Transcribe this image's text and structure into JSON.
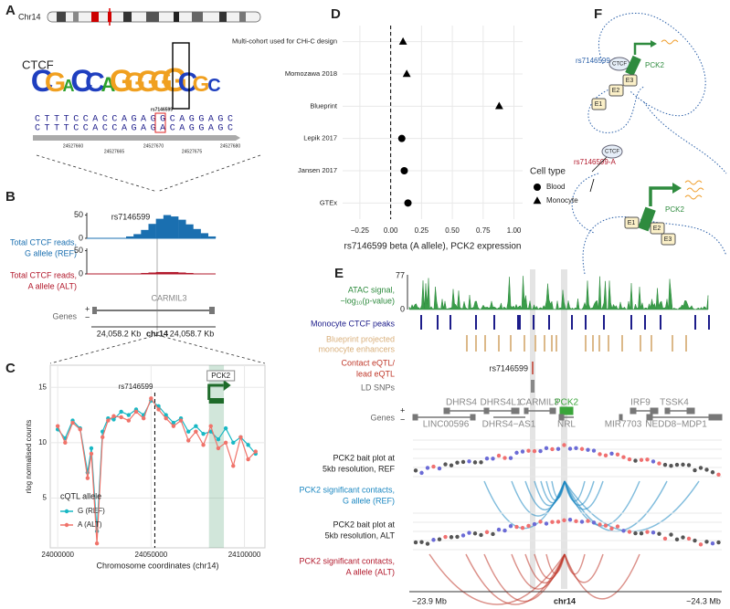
{
  "panel_labels": [
    "A",
    "B",
    "C",
    "D",
    "E",
    "F"
  ],
  "panel_a": {
    "chromosome": "Chr14",
    "motif": "CTCF",
    "logo": [
      "C",
      "G",
      "A",
      "C",
      "C",
      "A",
      "G",
      "G",
      "G",
      "G",
      "G",
      "C",
      "G",
      "C"
    ],
    "snp": "rs7146599",
    "seq_ref": "CTTTCCACCAGAGGCAGGAGC",
    "seq_alt": "CTTTCCACCAGAGACAGGAGC",
    "coords": [
      "24527660",
      "24527665",
      "24527670",
      "24527675",
      "24527680"
    ]
  },
  "panel_b": {
    "snp": "rs7146599",
    "ref_label": [
      "Total CTCF reads,",
      "G allele (REF)"
    ],
    "alt_label": [
      "Total CTCF reads,",
      "A allele (ALT)"
    ],
    "gene": "CARMIL3",
    "genes_label": "Genes",
    "strand": [
      "+",
      "−"
    ],
    "axis": [
      "24,058.2 Kb",
      "chr14",
      "24,058.7 Kb"
    ]
  },
  "chart_data": [
    {
      "type": "bar",
      "categories": [
        null,
        null,
        null,
        null,
        null,
        null,
        null,
        null,
        null,
        null,
        null,
        null
      ],
      "values": [
        4,
        9,
        18,
        31,
        42,
        50,
        47,
        40,
        30,
        20,
        11,
        4
      ],
      "color": "#1a6fb0",
      "ylim": [
        0,
        55
      ],
      "yticks": [
        0,
        50
      ]
    },
    {
      "type": "bar",
      "categories": [
        null,
        null,
        null,
        null,
        null,
        null,
        null,
        null,
        null,
        null,
        null,
        null
      ],
      "values": [
        0,
        1,
        2,
        3,
        4,
        4,
        4,
        3,
        2,
        1,
        0,
        0
      ],
      "color": "#b2182b",
      "ylim": [
        0,
        55
      ],
      "yticks": [
        0,
        50
      ]
    },
    {
      "type": "line",
      "x": [
        24000000,
        24004000,
        24008000,
        24012000,
        24016000,
        24018000,
        24021000,
        24024000,
        24027000,
        24030000,
        24034000,
        24038000,
        24042000,
        24046000,
        24050000,
        24054000,
        24058000,
        24062000,
        24066000,
        24070000,
        24074000,
        24078000,
        24082000,
        24086000,
        24090000,
        24094000,
        24098000,
        24102000,
        24106000
      ],
      "series": [
        {
          "name": "G (REF)",
          "color": "#19b8c4",
          "values": [
            11.2,
            10.4,
            12.0,
            11.3,
            7.3,
            9.5,
            2.0,
            11.0,
            12.2,
            12.1,
            12.8,
            12.5,
            13.0,
            12.5,
            13.8,
            13.3,
            12.5,
            11.8,
            12.2,
            11.0,
            11.5,
            10.8,
            11.0,
            10.3,
            11.3,
            10.0,
            10.5,
            9.8,
            9.0
          ]
        },
        {
          "name": "A (ALT)",
          "color": "#f0736a",
          "values": [
            11.5,
            10.0,
            11.8,
            11.2,
            6.8,
            9.0,
            0.9,
            10.5,
            12.0,
            12.4,
            12.3,
            12.0,
            12.8,
            12.2,
            14.0,
            13.0,
            12.2,
            11.5,
            12.0,
            10.2,
            11.0,
            9.8,
            11.5,
            9.5,
            10.0,
            7.9,
            10.5,
            8.5,
            9.2
          ]
        }
      ],
      "xlim": [
        23996000,
        24111000
      ],
      "ylim": [
        0.5,
        17
      ],
      "xticks": [
        24000000,
        24050000,
        24100000
      ],
      "yticks": [
        5,
        10,
        15
      ],
      "xlabel": "Chromosome coordinates (chr14)",
      "ylabel": "rlog normalised counts",
      "legend_title": "cQTL allele",
      "grid": true,
      "marker": {
        "text": "rs7146599",
        "x": 24052000
      },
      "highlight": {
        "label": "PCK2",
        "x": [
          24081000,
          24089000
        ]
      }
    },
    {
      "type": "scatter",
      "categories": [
        "Multi-cohort used for CHi-C design",
        "Momozawa 2018",
        "Blueprint",
        "Lepik 2017",
        "Jansen 2017",
        "GTEx"
      ],
      "values": [
        0.1,
        0.13,
        0.88,
        0.09,
        0.11,
        0.14
      ],
      "cell_type": [
        "Monocyte",
        "Monocyte",
        "Monocyte",
        "Blood",
        "Blood",
        "Blood"
      ],
      "color": "#000000",
      "xlim": [
        -0.39,
        1.07
      ],
      "xticks": [
        {
          "value": -0.25,
          "label": "−0.25"
        },
        {
          "value": 0,
          "label": "0.00"
        },
        0.25,
        {
          "value": 0.5,
          "label": "0.50"
        },
        0.75,
        {
          "value": 1,
          "label": "1.00"
        }
      ],
      "xlabel": "rs7146599 beta (A allele), PCK2 expression",
      "legend_title": "Cell type",
      "legend": [
        {
          "name": "Blood",
          "shape": "circle"
        },
        {
          "name": "Monocyte",
          "shape": "triangle"
        }
      ],
      "vline": 0,
      "grid": true
    }
  ],
  "panel_e": {
    "atac_label": [
      "ATAC signal,",
      "−log₁₀(p-value)"
    ],
    "atac_max": 77,
    "atac_min": 0,
    "ctcf_label": "Monocyte CTCF peaks",
    "enh_label": [
      "Blueprint projected",
      "monocyte enhancers"
    ],
    "eqtl_label": [
      "Contact eQTL/",
      "lead eQTL"
    ],
    "snp": "rs7146599",
    "ld_label": "LD SNPs",
    "genes_label": "Genes",
    "strand": [
      "+",
      "−"
    ],
    "genes_top": [
      "DHRS4",
      "DHRS4L1",
      "CARMIL3",
      "PCK2",
      "IRF9",
      "TSSK4"
    ],
    "genes_bottom": [
      "LINC00596",
      "DHRS4−AS1",
      "NRL",
      "MIR7703",
      "NEDD8−MDP1"
    ],
    "bait_ref": [
      "PCK2 bait plot at",
      "5kb resolution, REF"
    ],
    "contacts_ref": [
      "PCK2 significant contacts,",
      "G allele (REF)"
    ],
    "bait_alt": [
      "PCK2 bait plot at",
      "5kb resolution, ALT"
    ],
    "contacts_alt": [
      "PCK2 significant contacts,",
      "A allele (ALT)"
    ],
    "axis": [
      "~23.9 Mb",
      "chr14",
      "~24.3 Mb"
    ]
  },
  "panel_f": {
    "snp_ref": "rs7146599-G",
    "snp_alt": "rs7146599-A",
    "ctcf": "CTCF",
    "gene": "PCK2",
    "enhancers": [
      "E1",
      "E2",
      "E3"
    ]
  }
}
